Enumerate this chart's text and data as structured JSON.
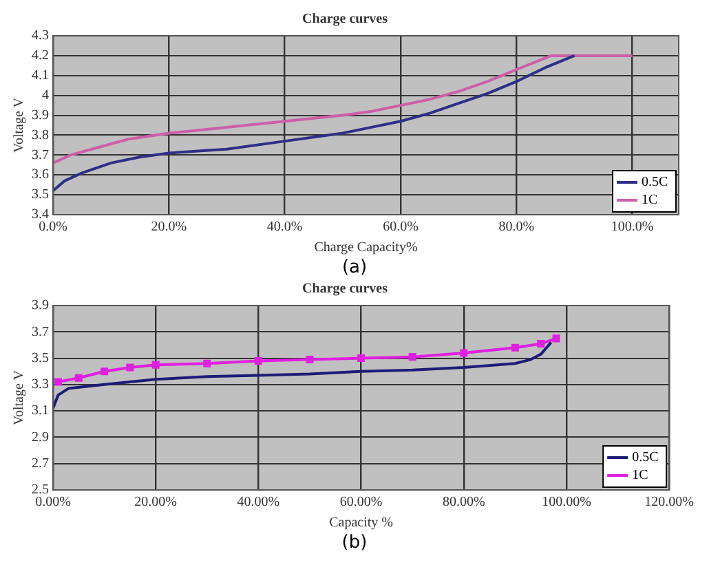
{
  "chart_data": [
    {
      "type": "line",
      "title": "Charge curves",
      "xlabel": "Charge Capacity%",
      "ylabel": "Voltage V",
      "annotations": [
        "(a)"
      ],
      "xlim": [
        0,
        108
      ],
      "xticks": [
        {
          "value": 0,
          "label": "0.0%"
        },
        {
          "value": 20,
          "label": "20.0%"
        },
        {
          "value": 40,
          "label": "40.0%"
        },
        {
          "value": 60,
          "label": "60.0%"
        },
        {
          "value": 80,
          "label": "80.0%"
        },
        {
          "value": 100,
          "label": "100.0%"
        }
      ],
      "ylim": [
        3.4,
        4.3
      ],
      "yticks": [
        3.4,
        3.5,
        3.6,
        3.7,
        3.8,
        3.9,
        4,
        4.1,
        4.2,
        4.3
      ],
      "grid": true,
      "legend": "bottom right",
      "marker": "none",
      "line_style": "solid",
      "series": [
        {
          "name": "0.5C",
          "color": "#2e2f86",
          "x": [
            0,
            2,
            5,
            10,
            15,
            20,
            30,
            40,
            50,
            55,
            60,
            65,
            70,
            75,
            80,
            85,
            90
          ],
          "values": [
            3.52,
            3.57,
            3.61,
            3.66,
            3.69,
            3.71,
            3.73,
            3.77,
            3.81,
            3.84,
            3.87,
            3.91,
            3.96,
            4.01,
            4.07,
            4.14,
            4.2
          ]
        },
        {
          "name": "1C",
          "color": "#cc5fa8",
          "x": [
            0,
            3,
            8,
            13,
            20,
            30,
            40,
            50,
            55,
            60,
            65,
            70,
            75,
            80,
            86,
            90,
            100
          ],
          "values": [
            3.66,
            3.7,
            3.74,
            3.78,
            3.81,
            3.84,
            3.87,
            3.9,
            3.92,
            3.95,
            3.98,
            4.02,
            4.07,
            4.13,
            4.2,
            4.2,
            4.2
          ]
        }
      ]
    },
    {
      "type": "line",
      "title": "Charge curves",
      "xlabel": "Capacity %",
      "ylabel": "Voltage V",
      "annotations": [
        "(b)"
      ],
      "xlim": [
        0,
        120
      ],
      "xticks": [
        {
          "value": 0,
          "label": "0.00%"
        },
        {
          "value": 20,
          "label": "20.00%"
        },
        {
          "value": 40,
          "label": "40.00%"
        },
        {
          "value": 60,
          "label": "60.00%"
        },
        {
          "value": 80,
          "label": "80.00%"
        },
        {
          "value": 100,
          "label": "100.00%"
        },
        {
          "value": 120,
          "label": "120.00%"
        }
      ],
      "ylim": [
        2.5,
        3.9
      ],
      "yticks": [
        2.5,
        2.7,
        2.9,
        3.1,
        3.3,
        3.5,
        3.7,
        3.9
      ],
      "grid": true,
      "legend": "bottom right",
      "line_style": "solid",
      "series": [
        {
          "name": "0.5C",
          "color": "#1c1c78",
          "marker": "none",
          "x": [
            0,
            1,
            3,
            10,
            20,
            30,
            40,
            50,
            60,
            70,
            80,
            90,
            93,
            95,
            97
          ],
          "values": [
            3.12,
            3.22,
            3.27,
            3.3,
            3.34,
            3.36,
            3.37,
            3.38,
            3.4,
            3.41,
            3.43,
            3.46,
            3.49,
            3.53,
            3.62
          ]
        },
        {
          "name": "1C",
          "color": "#e020e0",
          "marker": "square",
          "x": [
            1,
            5,
            10,
            15,
            20,
            30,
            40,
            50,
            60,
            70,
            80,
            90,
            95,
            98
          ],
          "values": [
            3.32,
            3.35,
            3.4,
            3.43,
            3.45,
            3.46,
            3.48,
            3.49,
            3.5,
            3.51,
            3.54,
            3.58,
            3.61,
            3.65
          ]
        }
      ]
    }
  ]
}
